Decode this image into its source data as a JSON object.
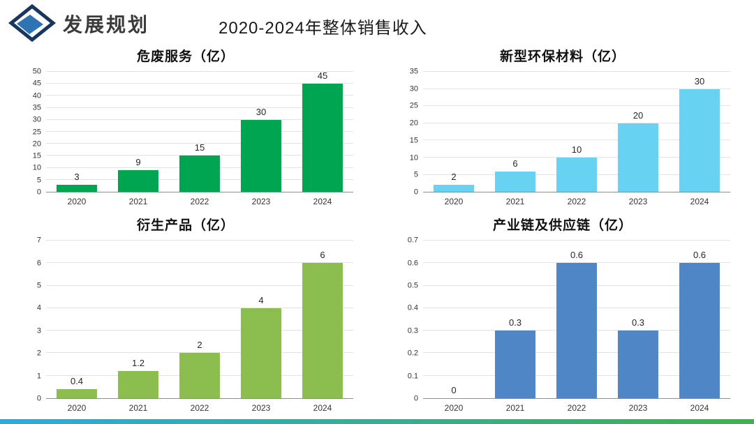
{
  "header": {
    "section_title": "发展规划",
    "main_title": "2020-2024年整体销售收入",
    "logo_icon": "diamond-logo",
    "logo_colors": {
      "outline": "#17375e",
      "fill": "#2e74b5"
    }
  },
  "chart_data": [
    {
      "type": "bar",
      "title": "危废服务（亿）",
      "categories": [
        "2020",
        "2021",
        "2022",
        "2023",
        "2024"
      ],
      "values": [
        3,
        9,
        15,
        30,
        45
      ],
      "value_labels": [
        "3",
        "9",
        "15",
        "30",
        "45"
      ],
      "bar_color": "#00a551",
      "ylim": [
        0,
        50
      ],
      "yticks": [
        "0",
        "5",
        "10",
        "15",
        "20",
        "25",
        "30",
        "35",
        "40",
        "45",
        "50"
      ],
      "xlabel": "",
      "ylabel": "",
      "grid": true,
      "legend": "none"
    },
    {
      "type": "bar",
      "title": "新型环保材料（亿）",
      "categories": [
        "2020",
        "2021",
        "2022",
        "2023",
        "2024"
      ],
      "values": [
        2,
        6,
        10,
        20,
        30
      ],
      "value_labels": [
        "2",
        "6",
        "10",
        "20",
        "30"
      ],
      "bar_color": "#67d2f2",
      "ylim": [
        0,
        35
      ],
      "yticks": [
        "0",
        "5",
        "10",
        "15",
        "20",
        "25",
        "30",
        "35"
      ],
      "xlabel": "",
      "ylabel": "",
      "grid": true,
      "legend": "none"
    },
    {
      "type": "bar",
      "title": "衍生产品（亿）",
      "categories": [
        "2020",
        "2021",
        "2022",
        "2023",
        "2024"
      ],
      "values": [
        0.4,
        1.2,
        2,
        4,
        6
      ],
      "value_labels": [
        "0.4",
        "1.2",
        "2",
        "4",
        "6"
      ],
      "bar_color": "#8cbe4f",
      "ylim": [
        0,
        7
      ],
      "yticks": [
        "0",
        "1",
        "2",
        "3",
        "4",
        "5",
        "6",
        "7"
      ],
      "xlabel": "",
      "ylabel": "",
      "grid": true,
      "legend": "none"
    },
    {
      "type": "bar",
      "title": "产业链及供应链（亿）",
      "categories": [
        "2020",
        "2021",
        "2022",
        "2023",
        "2024"
      ],
      "values": [
        0,
        0.3,
        0.6,
        0.3,
        0.6
      ],
      "value_labels": [
        "0",
        "0.3",
        "0.6",
        "0.3",
        "0.6"
      ],
      "bar_color": "#4f86c6",
      "ylim": [
        0,
        0.7
      ],
      "yticks": [
        "0",
        "0.1",
        "0.2",
        "0.3",
        "0.4",
        "0.5",
        "0.6",
        "0.7"
      ],
      "xlabel": "",
      "ylabel": "",
      "grid": true,
      "legend": "none"
    }
  ],
  "footer": {
    "accent_gradient": [
      "#29abe2",
      "#39b54a"
    ]
  }
}
